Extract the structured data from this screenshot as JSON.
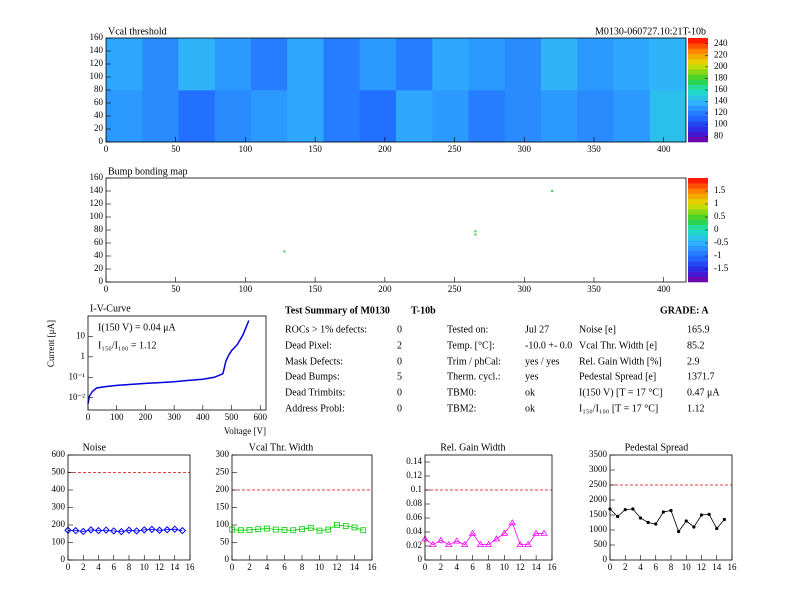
{
  "chart_data": [
    {
      "type": "heatmap",
      "title": "Vcal threshold",
      "annotation": "M0130-060727.10:21T-10b",
      "xlim": [
        0,
        416
      ],
      "xticks": [
        0,
        50,
        100,
        150,
        200,
        250,
        300,
        350,
        400
      ],
      "ylim": [
        0,
        160
      ],
      "yticks": [
        0,
        20,
        40,
        60,
        80,
        100,
        120,
        140,
        160
      ],
      "zlim": [
        70,
        250
      ],
      "zticks": [
        80,
        100,
        120,
        140,
        160,
        180,
        200,
        220,
        240
      ],
      "z": [
        [
          130,
          125,
          115,
          125,
          130,
          135,
          120,
          115,
          135,
          130,
          120,
          125,
          130,
          125,
          130,
          145
        ],
        [
          135,
          125,
          140,
          130,
          120,
          135,
          120,
          130,
          120,
          135,
          130,
          125,
          140,
          130,
          135,
          140
        ]
      ]
    },
    {
      "type": "scatter",
      "title": "Bump bonding map",
      "xlim": [
        0,
        416
      ],
      "xticks": [
        0,
        50,
        100,
        150,
        200,
        250,
        300,
        350,
        400
      ],
      "ylim": [
        0,
        160
      ],
      "yticks": [
        0,
        20,
        40,
        60,
        80,
        100,
        120,
        140,
        160
      ],
      "zlim": [
        -2,
        2
      ],
      "zticks": [
        -1.5,
        -1,
        -0.5,
        0,
        0.5,
        1,
        1.5
      ],
      "x": [
        320,
        265,
        265,
        128
      ],
      "y": [
        140,
        78,
        73,
        47
      ],
      "z": [
        0.3,
        0.3,
        0.3,
        0.3
      ]
    },
    {
      "type": "line",
      "title": "I-V-Curve",
      "xlabel": "Voltage [V]",
      "ylabel": "Current [μA]",
      "log_y": true,
      "annotations": [
        "I(150 V) = 0.04 μA",
        "I₁₅₀/I₁₀₀ = 1.12"
      ],
      "color": "#0000dd",
      "marker": null,
      "xlim": [
        0,
        620
      ],
      "xticks": [
        0,
        100,
        200,
        300,
        400,
        500,
        600
      ],
      "ylim": [
        0.0025,
        100
      ],
      "yticks": [
        {
          "value": 0.01,
          "label": "10⁻²"
        },
        {
          "value": 0.1,
          "label": "10⁻¹"
        },
        {
          "value": 1,
          "label": "1"
        },
        {
          "value": 10,
          "label": "10"
        }
      ],
      "x": [
        0,
        5,
        15,
        30,
        60,
        100,
        150,
        200,
        250,
        300,
        350,
        400,
        440,
        460,
        470,
        475,
        480,
        490,
        500,
        520,
        540,
        560
      ],
      "values": [
        0.005,
        0.012,
        0.02,
        0.03,
        0.035,
        0.04,
        0.045,
        0.05,
        0.055,
        0.06,
        0.07,
        0.08,
        0.1,
        0.13,
        0.15,
        0.3,
        0.6,
        1.2,
        2,
        4,
        12,
        60
      ]
    },
    {
      "type": "line",
      "title": "Noise",
      "color": "#0000ff",
      "marker": "diamond",
      "limit": 500,
      "xlim": [
        0,
        16
      ],
      "xticks": [
        0,
        2,
        4,
        6,
        8,
        10,
        12,
        14,
        16
      ],
      "ylim": [
        0,
        600
      ],
      "yticks": [
        0,
        100,
        200,
        300,
        400,
        500,
        600
      ],
      "x": [
        0,
        1,
        2,
        3,
        4,
        5,
        6,
        7,
        8,
        9,
        10,
        11,
        12,
        13,
        14,
        15
      ],
      "values": [
        170,
        168,
        163,
        172,
        168,
        171,
        166,
        162,
        170,
        166,
        172,
        175,
        170,
        173,
        176,
        168
      ]
    },
    {
      "type": "line",
      "title": "Vcal Thr. Width",
      "color": "#00cc00",
      "marker": "square",
      "limit": 200,
      "xlim": [
        0,
        16
      ],
      "xticks": [
        0,
        2,
        4,
        6,
        8,
        10,
        12,
        14,
        16
      ],
      "ylim": [
        0,
        300
      ],
      "yticks": [
        0,
        50,
        100,
        150,
        200,
        250,
        300
      ],
      "x": [
        0,
        1,
        2,
        3,
        4,
        5,
        6,
        7,
        8,
        9,
        10,
        11,
        12,
        13,
        14,
        15
      ],
      "values": [
        87,
        85,
        86,
        88,
        90,
        87,
        86,
        85,
        88,
        92,
        84,
        87,
        100,
        97,
        93,
        85
      ]
    },
    {
      "type": "line",
      "title": "Rel. Gain Width",
      "color": "#ff00ff",
      "marker": "triangle",
      "limit": 0.1,
      "xlim": [
        0,
        16
      ],
      "xticks": [
        0,
        2,
        4,
        6,
        8,
        10,
        12,
        14,
        16
      ],
      "ylim": [
        0,
        0.15
      ],
      "yticks": [
        0,
        0.02,
        0.04,
        0.06,
        0.08,
        0.1,
        0.12,
        0.14
      ],
      "x": [
        0,
        1,
        2,
        3,
        4,
        5,
        6,
        7,
        8,
        9,
        10,
        11,
        12,
        13,
        14,
        15
      ],
      "values": [
        0.03,
        0.022,
        0.028,
        0.022,
        0.027,
        0.022,
        0.038,
        0.022,
        0.022,
        0.03,
        0.038,
        0.053,
        0.022,
        0.022,
        0.038,
        0.038
      ]
    },
    {
      "type": "line",
      "title": "Pedestal Spread",
      "color": "#000000",
      "marker": "dot",
      "limit": 2500,
      "xlim": [
        0,
        16
      ],
      "xticks": [
        0,
        2,
        4,
        6,
        8,
        10,
        12,
        14,
        16
      ],
      "ylim": [
        0,
        3500
      ],
      "yticks": [
        0,
        500,
        1000,
        1500,
        2000,
        2500,
        3000,
        3500
      ],
      "x": [
        0,
        1,
        2,
        3,
        4,
        5,
        6,
        7,
        8,
        9,
        10,
        11,
        12,
        13,
        14,
        15
      ],
      "values": [
        1700,
        1450,
        1680,
        1700,
        1400,
        1250,
        1200,
        1600,
        1650,
        950,
        1300,
        1100,
        1500,
        1520,
        1050,
        1350
      ]
    }
  ],
  "summary": {
    "title": "Test Summary of M0130",
    "module": "T-10b",
    "grade": "GRADE:  A",
    "left": [
      {
        "label": "ROCs > 1% defects:",
        "value": 0
      },
      {
        "label": "Dead Pixel:",
        "value": 2
      },
      {
        "label": "Mask Defects:",
        "value": 0
      },
      {
        "label": "Dead Bumps:",
        "value": 5
      },
      {
        "label": "Dead Trimbits:",
        "value": 0
      },
      {
        "label": "Address Probl:",
        "value": 0
      }
    ],
    "middle": [
      {
        "label": "Tested on:",
        "value": "Jul 27"
      },
      {
        "label": "Temp. [°C]:",
        "value": "-10.0 +- 0.0"
      },
      {
        "label": "Trim / phCal:",
        "value": "yes / yes"
      },
      {
        "label": "Therm. cycl.:",
        "value": "yes"
      },
      {
        "label": "TBM0:",
        "value": "ok"
      },
      {
        "label": "TBM2:",
        "value": "ok"
      }
    ],
    "right": [
      {
        "label": "Noise [e]",
        "value": 165.9
      },
      {
        "label": "Vcal Thr. Width [e]",
        "value": 85.2
      },
      {
        "label": "Rel. Gain Width [%]",
        "value": 2.9
      },
      {
        "label": "Pedestal Spread [e]",
        "value": 1371.7
      },
      {
        "label": "I(150 V) [T = 17 °C]",
        "value": "0.47 μA"
      },
      {
        "label": "I₁₅₀/I₁₀₀   [T = 17 °C]",
        "value": 1.12
      }
    ]
  }
}
